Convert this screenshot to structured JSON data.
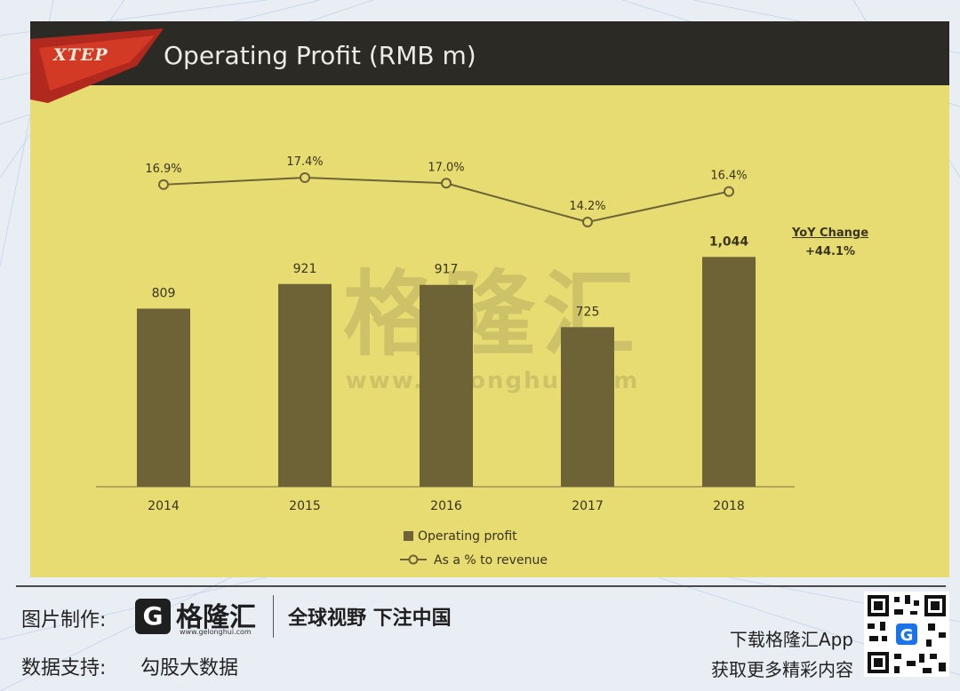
{
  "slide": {
    "brand_logo": "XTEP",
    "title": "Operating Profit (RMB m)"
  },
  "chart_data": {
    "type": "bar",
    "title": "Operating Profit (RMB m)",
    "categories": [
      "2014",
      "2015",
      "2016",
      "2017",
      "2018"
    ],
    "series": [
      {
        "name": "Operating profit",
        "values": [
          809,
          921,
          917,
          725,
          1044
        ],
        "labels": [
          "809",
          "921",
          "917",
          "725",
          "1,044"
        ],
        "color": "#6e6336"
      },
      {
        "name": "As a % to revenue",
        "type": "line",
        "values": [
          16.9,
          17.4,
          17.0,
          14.2,
          16.4
        ],
        "labels": [
          "16.9%",
          "17.4%",
          "17.0%",
          "14.2%",
          "16.4%"
        ],
        "color": "#6e6336"
      }
    ],
    "xlabel": "",
    "ylabel": "",
    "ylim": [
      0,
      1150
    ],
    "grid": false,
    "legend": "bottom-center",
    "annotation": {
      "label": "YoY Change",
      "value": "+44.1%"
    }
  },
  "watermark": {
    "cn": "格隆汇",
    "url": "www.gelonghui.com"
  },
  "footer": {
    "made_by_label": "图片制作:",
    "brand_mark": "G",
    "brand_name": "格隆汇",
    "brand_url": "www.gelonghui.com",
    "slogan": "全球视野 下注中国",
    "data_support_label": "数据支持:",
    "data_support_value": "勾股大数据",
    "download_line1": "下载格隆汇App",
    "download_line2": "获取更多精彩内容"
  },
  "colors": {
    "slide_bg": "#e6dc72",
    "header_bg": "#2c2a24",
    "bar": "#6e6336",
    "text_dark": "#3b3318"
  }
}
